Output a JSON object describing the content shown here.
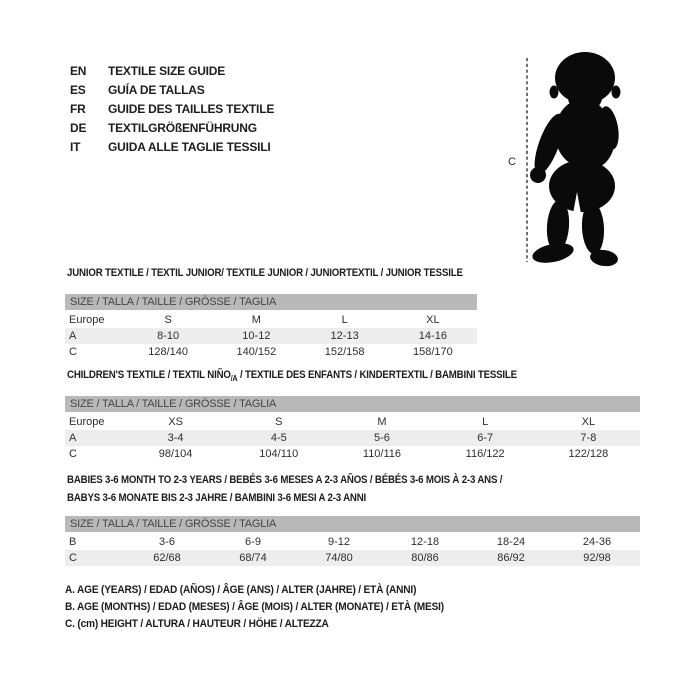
{
  "language_guide": {
    "items": [
      {
        "code": "EN",
        "label": "TEXTILE SIZE GUIDE"
      },
      {
        "code": "ES",
        "label": "GUÍA DE TALLAS"
      },
      {
        "code": "FR",
        "label": "GUIDE DES TAILLES TEXTILE"
      },
      {
        "code": "DE",
        "label": "TEXTILGRÖßENFÜHRUNG"
      },
      {
        "code": "IT",
        "label": "GUIDA ALLE TAGLIE TESSILI"
      }
    ]
  },
  "figure": {
    "height_label": "C"
  },
  "tables": [
    {
      "title": {
        "pre": "JUNIOR TEXTILE / TEXTIL JUNIOR/ TEXTILE JUNIOR / JUNIORTEXTIL / JUNIOR TESSILE",
        "sub": "",
        "post": "",
        "line2": ""
      },
      "size_header": "SIZE / TALLA / TAILLE / GRÖSSE / TAGLIA",
      "rows": [
        {
          "label": "Europe",
          "shaded": false,
          "values": [
            "S",
            "M",
            "L",
            "XL"
          ]
        },
        {
          "label": "A",
          "shaded": true,
          "values": [
            "8-10",
            "10-12",
            "12-13",
            "14-16"
          ]
        },
        {
          "label": "C",
          "shaded": false,
          "values": [
            "128/140",
            "140/152",
            "152/158",
            "158/170"
          ]
        }
      ]
    },
    {
      "title": {
        "pre": "CHILDREN'S TEXTILE / TEXTIL NIÑO",
        "sub": "/A",
        "post": " / TEXTILE DES ENFANTS / KINDERTEXTIL / BAMBINI TESSILE",
        "line2": ""
      },
      "size_header": "SIZE / TALLA / TAILLE / GRÖSSE / TAGLIA",
      "rows": [
        {
          "label": "Europe",
          "shaded": false,
          "values": [
            "XS",
            "S",
            "M",
            "L",
            "XL"
          ]
        },
        {
          "label": "A",
          "shaded": true,
          "values": [
            "3-4",
            "4-5",
            "5-6",
            "6-7",
            "7-8"
          ]
        },
        {
          "label": "C",
          "shaded": false,
          "values": [
            "98/104",
            "104/110",
            "110/116",
            "116/122",
            "122/128"
          ]
        }
      ]
    },
    {
      "title": {
        "pre": "BABIES 3-6 MONTH TO 2-3 YEARS / BEBÉS 3-6 MESES A 2-3 AÑOS / BÉBÉS 3-6 MOIS À 2-3 ANS /",
        "sub": "",
        "post": "",
        "line2": "BABYS 3-6 MONATE BIS 2-3 JAHRE / BAMBINI 3-6 MESI A 2-3 ANNI"
      },
      "size_header": "SIZE / TALLA / TAILLE / GRÖSSE / TAGLIA",
      "rows": [
        {
          "label": "B",
          "shaded": false,
          "values": [
            "3-6",
            "6-9",
            "9-12",
            "12-18",
            "18-24",
            "24-36"
          ]
        },
        {
          "label": "C",
          "shaded": true,
          "values": [
            "62/68",
            "68/74",
            "74/80",
            "80/86",
            "86/92",
            "92/98"
          ]
        }
      ]
    }
  ],
  "footnotes": [
    "A. AGE (YEARS) / EDAD (AÑOS) / ÂGE (ANS) / ALTER (JAHRE) / ETÀ (ANNI)",
    "B. AGE (MONTHS) / EDAD (MESES) / ÂGE (MOIS) / ALTER (MONATE) / ETÀ (MESI)",
    "C. (cm) HEIGHT / ALTURA / HAUTEUR / HÖHE / ALTEZZA"
  ],
  "colors": {
    "bar_bg": "#b9b9b9",
    "row_shaded": "#ededed",
    "text": "#1e1e1e",
    "silhouette": "#0a0a0a"
  }
}
